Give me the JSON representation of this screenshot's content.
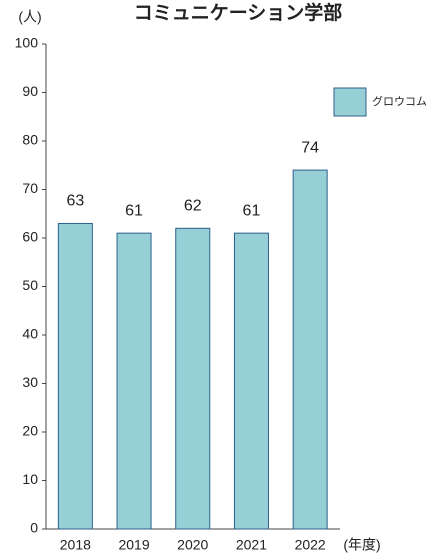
{
  "chart_data": {
    "type": "bar",
    "title": "コミュニケーション学部",
    "y_unit": "(人)",
    "x_unit": "(年度)",
    "categories": [
      "2018",
      "2019",
      "2020",
      "2021",
      "2022"
    ],
    "series": [
      {
        "name": "グロウコム",
        "color": "#96d0d6",
        "values": [
          63,
          61,
          62,
          61,
          74
        ]
      }
    ],
    "ylim": [
      0,
      100
    ],
    "yticks": [
      0,
      10,
      20,
      30,
      40,
      50,
      60,
      70,
      80,
      90,
      100
    ],
    "legend": "top-right",
    "data_labels": true
  }
}
